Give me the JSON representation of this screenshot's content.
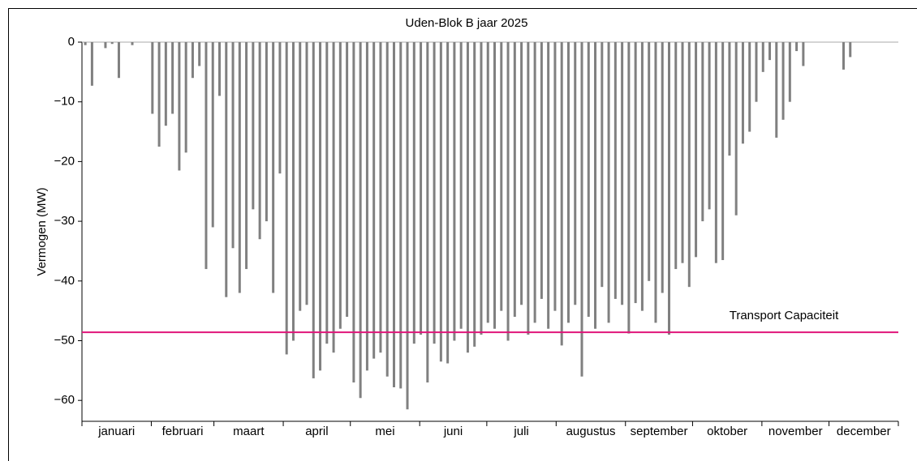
{
  "chart_data": {
    "type": "bar",
    "title": "Uden-Blok B jaar 2025",
    "y_label": "Vermogen (MW)",
    "color": "#808080",
    "x": [
      1.5,
      4.5,
      7.5,
      10.5,
      13.5,
      16.5,
      19.5,
      22.5,
      25.5,
      28.5,
      31.5,
      34.5,
      37.5,
      40.5,
      43.5,
      46.5,
      49.5,
      52.5,
      55.5,
      58.5,
      61.5,
      64.5,
      67.5,
      70.5,
      73.5,
      76.5,
      79.5,
      82.5,
      85.5,
      88.5,
      91.5,
      94.5,
      97.5,
      100.5,
      103.5,
      106.5,
      109.5,
      112.5,
      115.5,
      118.5,
      121.5,
      124.5,
      127.5,
      130.5,
      133.5,
      136.5,
      139.5,
      142.5,
      145.5,
      148.5,
      151.5,
      154.5,
      157.5,
      160.5,
      163.5,
      166.5,
      169.5,
      172.5,
      175.5,
      178.5,
      181.5,
      184.5,
      187.5,
      190.5,
      193.5,
      196.5,
      199.5,
      202.5,
      205.5,
      208.5,
      211.5,
      214.5,
      217.5,
      220.5,
      223.5,
      226.5,
      229.5,
      232.5,
      235.5,
      238.5,
      241.5,
      244.5,
      247.5,
      250.5,
      253.5,
      256.5,
      259.5,
      262.5,
      265.5,
      268.5,
      271.5,
      274.5,
      277.5,
      280.5,
      283.5,
      286.5,
      289.5,
      292.5,
      295.5,
      298.5,
      301.5,
      304.5,
      307.5,
      310.5,
      313.5,
      316.5,
      319.5,
      322.5,
      325.5,
      328.5,
      331.5,
      334.5,
      337.5,
      340.5,
      343.5,
      346.5,
      349.5,
      352.5,
      355.5,
      358.5,
      361.5,
      364.5
    ],
    "values": [
      -0.5,
      -7.3,
      0,
      -1,
      -0.3,
      -6,
      0,
      -0.5,
      0,
      0,
      -12,
      -17.5,
      -14,
      -12,
      -21.5,
      -18.5,
      -6,
      -4,
      -38,
      -31,
      -9,
      -42.7,
      -34.5,
      -42,
      -38,
      -28,
      -33,
      -30,
      -42,
      -22,
      -52.3,
      -50,
      -45,
      -44,
      -56.3,
      -55,
      -50.5,
      -52,
      -48,
      -46,
      -57,
      -59.6,
      -55,
      -53,
      -52,
      -56,
      -57.8,
      -58,
      -61.5,
      -50.5,
      -49,
      -57,
      -50.5,
      -53.5,
      -53.8,
      -50,
      -48,
      -52,
      -51,
      -49,
      -47,
      -48,
      -45,
      -50,
      -46,
      -44,
      -49,
      -47,
      -43,
      -48,
      -45,
      -50.8,
      -47,
      -44,
      -56,
      -46,
      -48,
      -41,
      -47,
      -43,
      -44,
      -48.8,
      -43.7,
      -45,
      -40,
      -47,
      -42,
      -49,
      -38,
      -37,
      -41,
      -36,
      -30,
      -28,
      -37,
      -36.5,
      -19,
      -29,
      -17,
      -15,
      -10,
      -5,
      -3,
      -16,
      -13,
      -10,
      -1.5,
      -4,
      0,
      0,
      0,
      0,
      0,
      -4.6,
      -2.5,
      0,
      0,
      0,
      0,
      0,
      0,
      0
    ],
    "xlim": [
      0,
      365
    ],
    "xticks": [
      0,
      31,
      59,
      90,
      120,
      151,
      181,
      212,
      243,
      273,
      304,
      334,
      365
    ],
    "month_labels": [
      "januari",
      "februari",
      "maart",
      "april",
      "mei",
      "juni",
      "juli",
      "augustus",
      "september",
      "oktober",
      "november",
      "december"
    ],
    "ylim": [
      -63.5,
      0
    ],
    "yticks": [
      0,
      {
        "value": -10,
        "label": "−10"
      },
      {
        "value": -20,
        "label": "−20"
      },
      {
        "value": -30,
        "label": "−30"
      },
      {
        "value": -40,
        "label": "−40"
      },
      {
        "value": -50,
        "label": "−50"
      },
      {
        "value": -60,
        "label": "−60"
      }
    ],
    "reference_line": {
      "value": -48.6,
      "label": "Transport Capaciteit",
      "color": "#e0157a"
    }
  }
}
